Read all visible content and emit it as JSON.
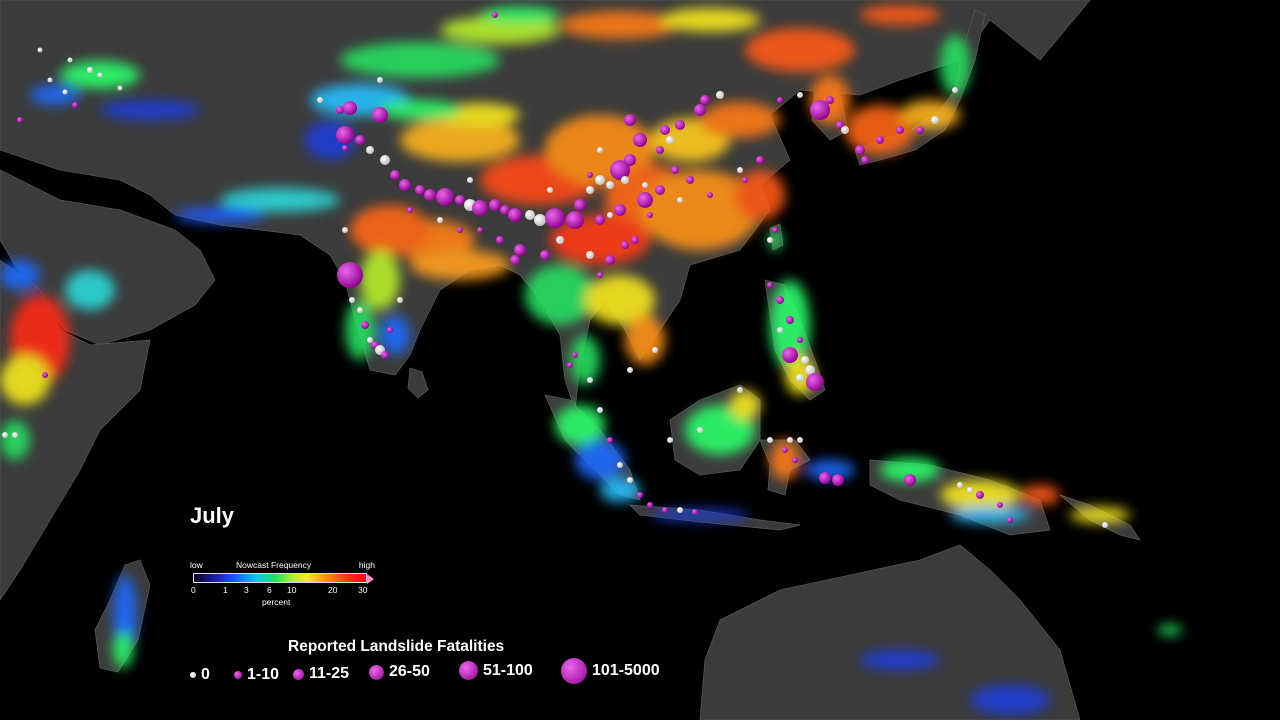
{
  "month_label": "July",
  "colorbar": {
    "low_label": "low",
    "title": "Nowcast Frequency",
    "high_label": "high",
    "ticks": [
      "0",
      "1",
      "3",
      "6",
      "10",
      "20",
      "30"
    ],
    "unit": "percent",
    "colors": [
      "#080825",
      "#1b1aa8",
      "#1b5cff",
      "#19c1f0",
      "#28e05a",
      "#b9f02b",
      "#f8e91d",
      "#ff9318",
      "#ff3a12",
      "#f4051a"
    ]
  },
  "fatalities_legend": {
    "title": "Reported Landslide Fatalities",
    "items": [
      {
        "label": "0",
        "color": "white"
      },
      {
        "label": "1-10",
        "color": "purple"
      },
      {
        "label": "11-25",
        "color": "purple"
      },
      {
        "label": "26-50",
        "color": "purple"
      },
      {
        "label": "51-100",
        "color": "purple"
      },
      {
        "label": "101-5000",
        "color": "purple"
      }
    ]
  },
  "colors": {
    "ocean": "#000000",
    "land": "#3b3b3b",
    "border": "#5a5a5a",
    "marker_purple": "#b01ab0",
    "marker_white": "#f2f2f2"
  }
}
